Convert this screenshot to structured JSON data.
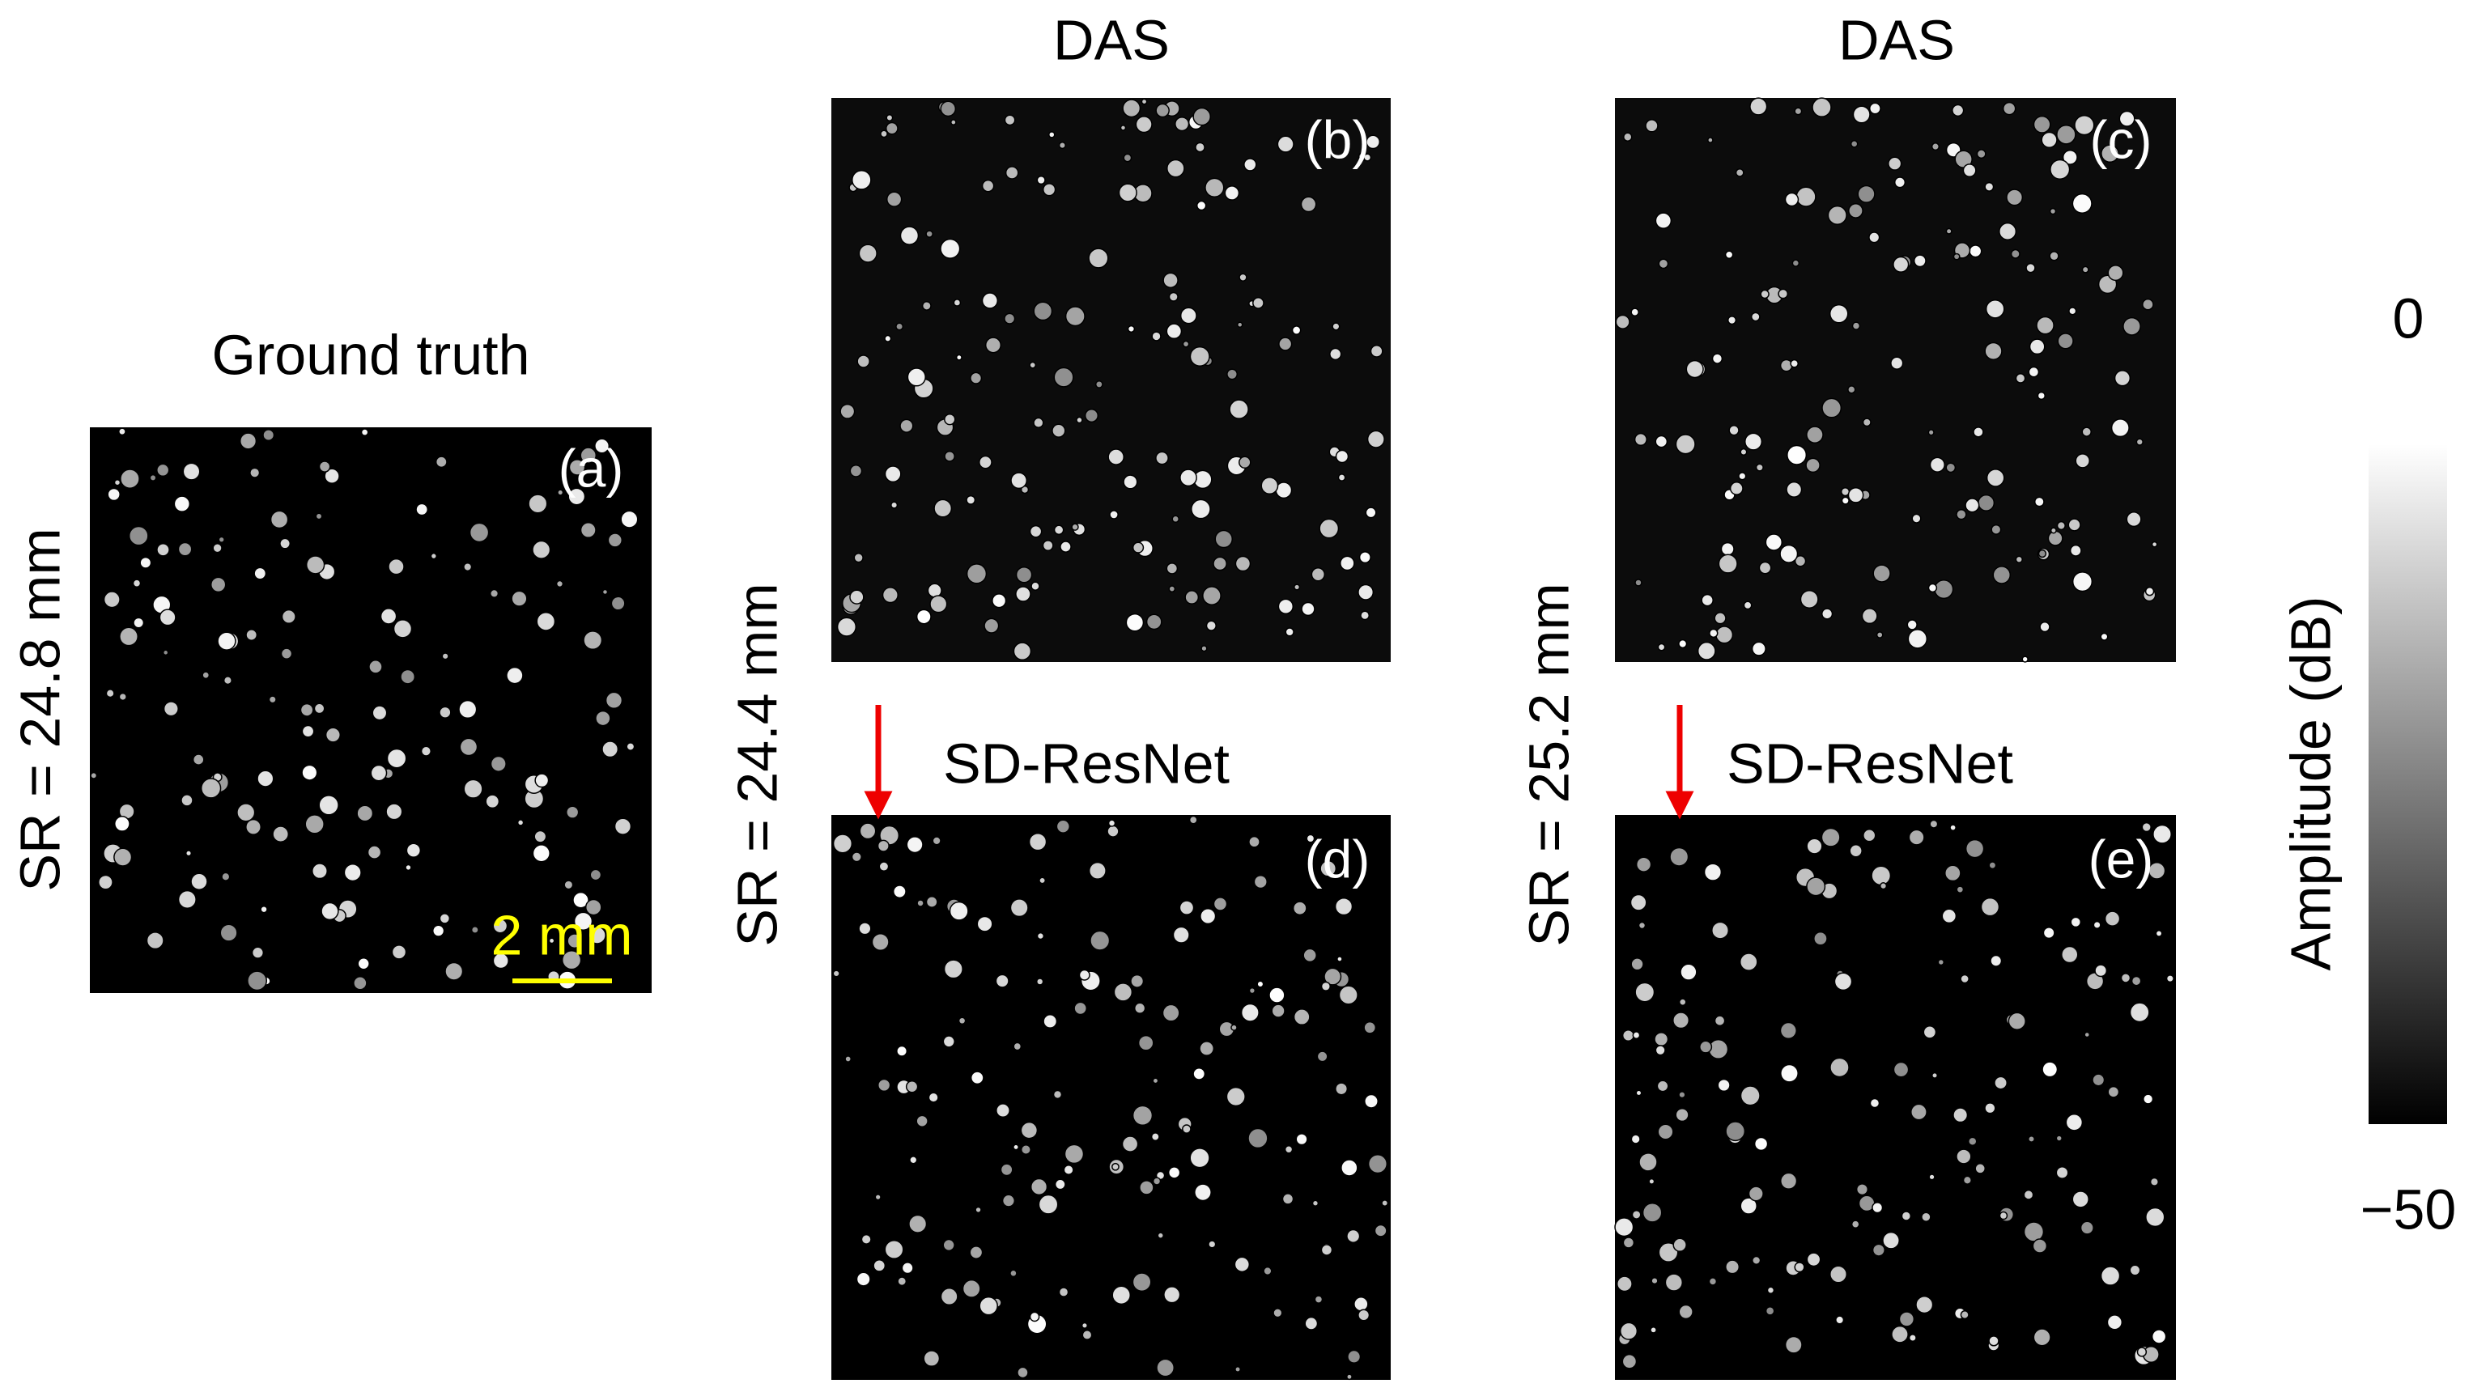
{
  "figure": {
    "ground_truth_title": "Ground truth",
    "column_titles": [
      "DAS",
      "DAS"
    ],
    "method_labels": [
      "SD-ResNet",
      "SD-ResNet"
    ],
    "row_labels": [
      "SR = 24.8 mm",
      "SR = 24.4 mm",
      "SR = 25.2 mm"
    ],
    "panel_labels": [
      "(a)",
      "(b)",
      "(c)",
      "(d)",
      "(e)"
    ],
    "scale_bar": "2 mm",
    "colorbar": {
      "label": "Amplitude (dB)",
      "top_label": "0",
      "bottom_label": "−50"
    }
  }
}
